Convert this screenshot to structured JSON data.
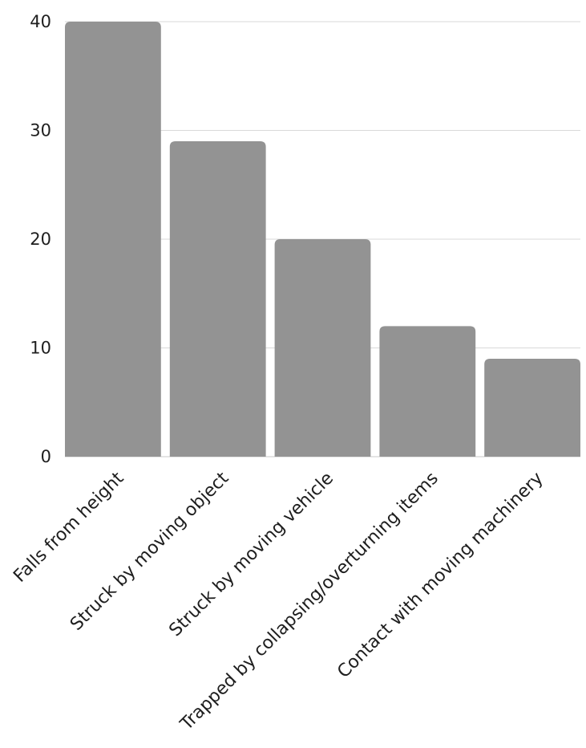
{
  "colors": {
    "bar": "#939393",
    "background": "#ffffff",
    "text": "#1e1e1e",
    "grid": "#d9d9d9"
  },
  "chart_data": {
    "type": "bar",
    "title": "",
    "xlabel": "",
    "ylabel": "",
    "categories": [
      "Falls from height",
      "Struck by moving object",
      "Struck by moving vehicle",
      "Trapped by collapsing/overturning items",
      "Contact with moving machinery"
    ],
    "values": [
      40,
      29,
      20,
      12,
      9
    ],
    "ylim": [
      0,
      40
    ],
    "yticks": [
      0,
      10,
      20,
      30,
      40
    ],
    "ytick_labels": [
      "0",
      "10",
      "20",
      "30",
      "40"
    ],
    "grid": true,
    "legend": "none"
  }
}
